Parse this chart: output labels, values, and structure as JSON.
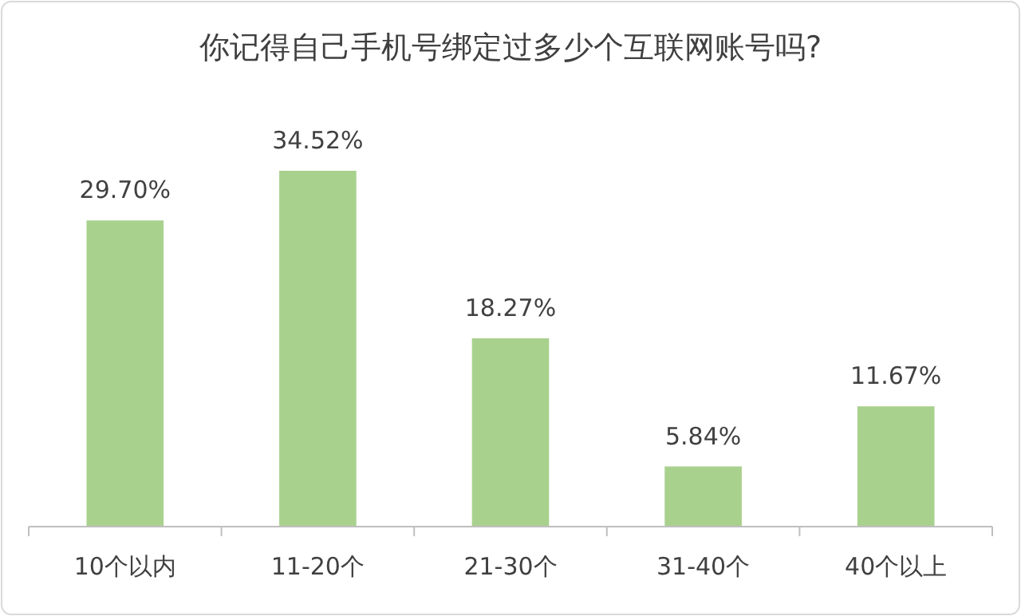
{
  "chart_data": {
    "type": "bar",
    "title": "你记得自己手机号绑定过多少个互联网账号吗?",
    "categories": [
      "10个以内",
      "11-20个",
      "21-30个",
      "31-40个",
      "40个以上"
    ],
    "values": [
      29.7,
      34.52,
      18.27,
      5.84,
      11.67
    ],
    "value_labels": [
      "29.70%",
      "34.52%",
      "18.27%",
      "5.84%",
      "11.67%"
    ],
    "color": "#a9d18e"
  }
}
